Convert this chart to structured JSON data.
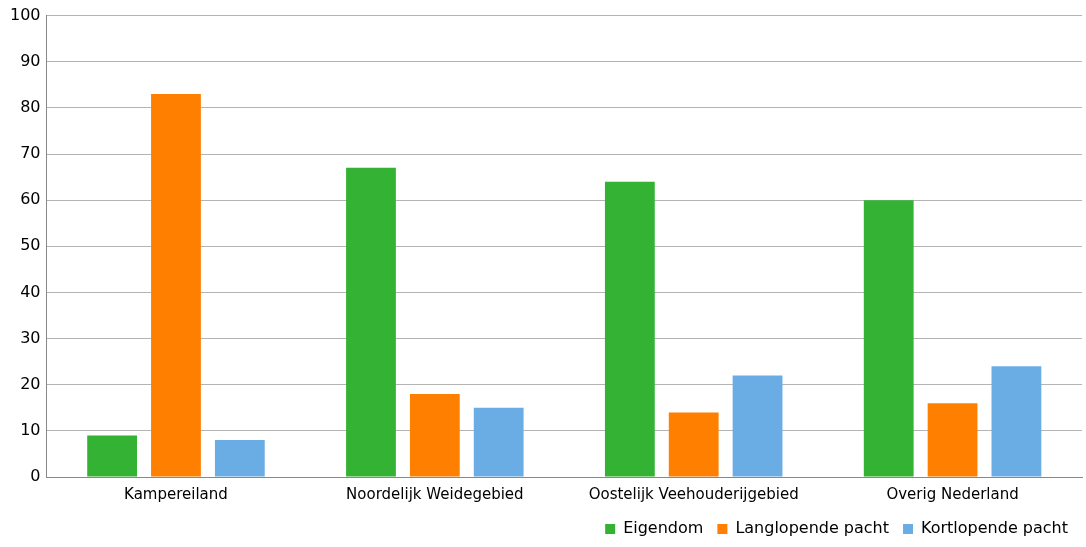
{
  "chart_data": {
    "type": "bar",
    "categories": [
      "Kampereiland",
      "Noordelijk Weidegebied",
      "Oostelijk Veehouderijgebied",
      "Overig Nederland"
    ],
    "series": [
      {
        "name": "Eigendom",
        "color": "#33b233",
        "values": [
          9,
          67,
          64,
          60
        ]
      },
      {
        "name": "Langlopende pacht",
        "color": "#ff7f00",
        "values": [
          83,
          18,
          14,
          16
        ]
      },
      {
        "name": "Kortlopende pacht",
        "color": "#6aade4",
        "values": [
          8,
          15,
          22,
          24
        ]
      }
    ],
    "ylim": [
      0,
      100
    ],
    "yticks": [
      0,
      10,
      20,
      30,
      40,
      50,
      60,
      70,
      80,
      90,
      100
    ],
    "grid": "y",
    "legend": "bottom right"
  }
}
